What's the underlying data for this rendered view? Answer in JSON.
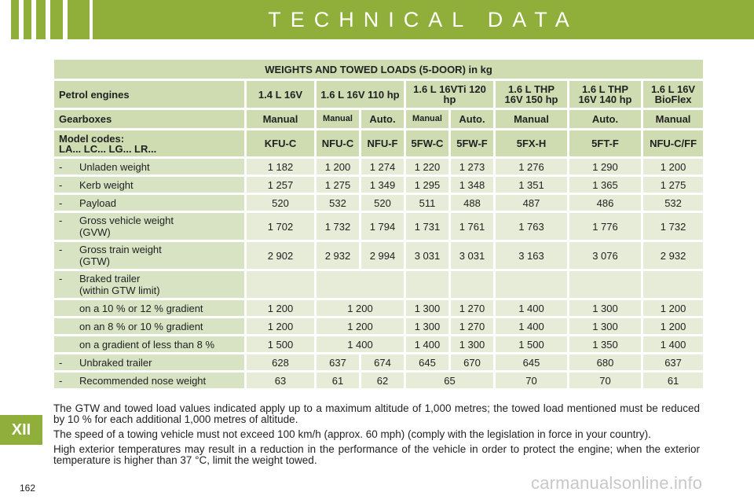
{
  "header": {
    "title": "TECHNICAL DATA"
  },
  "section_tab": "XII",
  "page_number": "162",
  "watermark": "carmanualsonline.info",
  "table": {
    "title": "WEIGHTS AND TOWED LOADS (5-DOOR) in kg",
    "engines_label": "Petrol engines",
    "engines": [
      "1.4 L 16V",
      "1.6 L 16V 110 hp",
      "1.6 L 16VTi 120 hp",
      "1.6 L THP 16V 150 hp",
      "1.6 L THP 16V 140 hp",
      "1.6 L 16V BioFlex"
    ],
    "gearboxes_label": "Gearboxes",
    "gearboxes": [
      "Manual",
      "Manual",
      "Auto.",
      "Manual",
      "Auto.",
      "Manual",
      "Auto.",
      "Manual"
    ],
    "model_label_1": "Model codes:",
    "model_label_2": "LA... LC... LG... LR...",
    "model_codes": [
      "KFU-C",
      "NFU-C",
      "NFU-F",
      "5FW-C",
      "5FW-F",
      "5FX-H",
      "5FT-F",
      "NFU-C/FF"
    ],
    "rows": [
      {
        "dash": "-",
        "label": "Unladen weight",
        "values": [
          "1 182",
          "1 200",
          "1 274",
          "1 220",
          "1 273",
          "1 276",
          "1 290",
          "1 200"
        ]
      },
      {
        "dash": "-",
        "label": "Kerb weight",
        "values": [
          "1 257",
          "1 275",
          "1 349",
          "1 295",
          "1 348",
          "1 351",
          "1 365",
          "1 275"
        ]
      },
      {
        "dash": "-",
        "label": "Payload",
        "values": [
          "520",
          "532",
          "520",
          "511",
          "488",
          "487",
          "486",
          "532"
        ]
      },
      {
        "dash": "-",
        "label": "Gross vehicle weight",
        "label2": "(GVW)",
        "values": [
          "1 702",
          "1 732",
          "1 794",
          "1 731",
          "1 761",
          "1 763",
          "1 776",
          "1 732"
        ]
      },
      {
        "dash": "-",
        "label": "Gross train weight",
        "label2": "(GTW)",
        "values": [
          "2 902",
          "2 932",
          "2 994",
          "3 031",
          "3 031",
          "3 163",
          "3 076",
          "2 932"
        ]
      },
      {
        "dash": "-",
        "label": "Braked trailer",
        "label2": "(within GTW limit)"
      },
      {
        "label": "on a 10 % or 12 % gradient",
        "values": [
          "1 200",
          "1 200",
          "1 300",
          "1 270",
          "1 400",
          "1 300",
          "1 200"
        ]
      },
      {
        "label": "on an 8 % or 10 % gradient",
        "values": [
          "1 200",
          "1 200",
          "1 300",
          "1 270",
          "1 400",
          "1 300",
          "1 200"
        ]
      },
      {
        "label": "on a gradient of less than 8 %",
        "values": [
          "1 500",
          "1 400",
          "1 400",
          "1 300",
          "1 500",
          "1 350",
          "1 400"
        ]
      },
      {
        "dash": "-",
        "label": "Unbraked trailer",
        "values": [
          "628",
          "637",
          "674",
          "645",
          "670",
          "645",
          "680",
          "637"
        ]
      },
      {
        "dash": "-",
        "label": "Recommended nose weight",
        "values": [
          "63",
          "61",
          "62",
          "65",
          "70",
          "70",
          "61"
        ]
      }
    ]
  },
  "notes": [
    "The GTW and towed load values indicated apply up to a maximum altitude of 1,000 metres; the towed load mentioned must be reduced by 10 % for each additional 1,000 metres of altitude.",
    "The speed of a towing vehicle must not exceed 100 km/h (approx. 60 mph) (comply with the legislation in force in your country).",
    "High exterior temperatures may result in a reduction in the performance of the vehicle in order to protect the engine; when the exterior temperature is higher than 37 °C, limit the weight towed."
  ]
}
